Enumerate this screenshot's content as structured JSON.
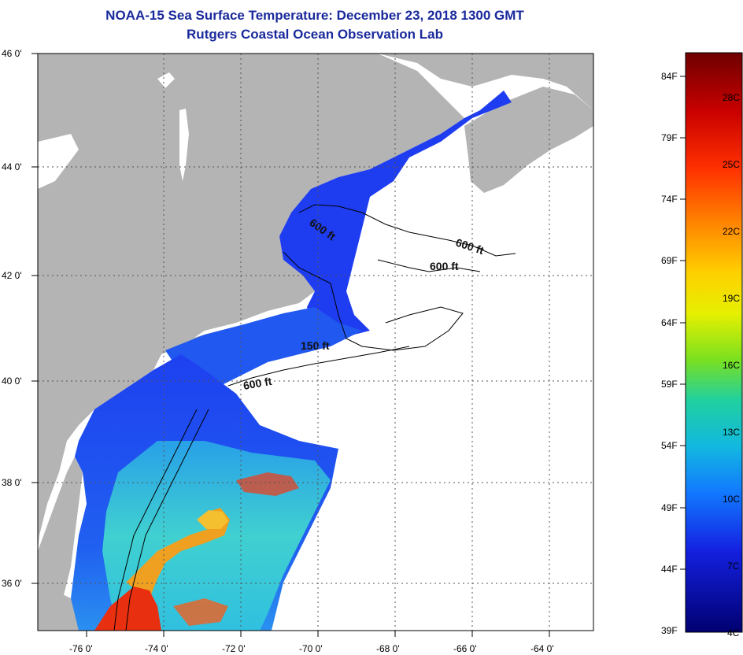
{
  "title": {
    "line1": "NOAA-15 Sea Surface Temperature:  December 23, 2018 1300 GMT",
    "line2": "Rutgers Coastal Ocean Observation Lab"
  },
  "map": {
    "lat_labels": [
      "46 0'",
      "44 0'",
      "42 0'",
      "40 0'",
      "38 0'",
      "36 0'"
    ],
    "lon_labels": [
      "-76 0'",
      "-74 0'",
      "-72 0'",
      "-70 0'",
      "-68 0'",
      "-66 0'",
      "-64 0'"
    ],
    "contour_labels": [
      "600 ft",
      "600 ft",
      "600 ft",
      "150 ft",
      "600 ft"
    ],
    "colors": {
      "land": "#b4b4b4",
      "cloud": "#ffffff",
      "cold": "#1a3cf0",
      "cool": "#2a8ef0",
      "mild": "#36d0d8",
      "warm": "#f0a020",
      "hot": "#e83010"
    }
  },
  "colorbar": {
    "fahrenheit_labels": [
      "84F",
      "79F",
      "74F",
      "69F",
      "64F",
      "59F",
      "54F",
      "49F",
      "44F",
      "39F"
    ],
    "celsius_labels": [
      "28C",
      "25C",
      "22C",
      "19C",
      "16C",
      "13C",
      "10C",
      "7C",
      "4C"
    ],
    "colors": [
      "#7a0000",
      "#d00000",
      "#ff4000",
      "#ff9000",
      "#ffd000",
      "#e0f000",
      "#80e020",
      "#20d0a0",
      "#10b0e0",
      "#1070ff",
      "#1020e0",
      "#000080"
    ]
  }
}
